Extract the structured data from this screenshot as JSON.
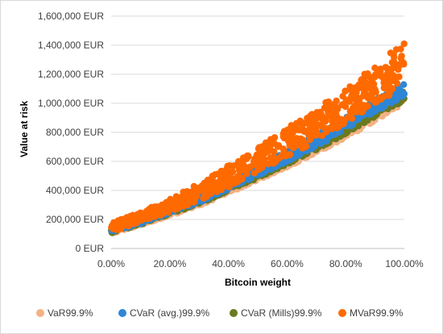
{
  "chart_data": {
    "type": "scatter",
    "title": "",
    "xlabel": "Bitcoin weight",
    "ylabel": "Value at risk",
    "xlim": [
      0,
      1
    ],
    "ylim": [
      0,
      1600000
    ],
    "x_ticks": [
      "0.00%",
      "20.00%",
      "40.00%",
      "60.00%",
      "80.00%",
      "100.00%"
    ],
    "y_ticks": [
      "0 EUR",
      "200,000 EUR",
      "400,000 EUR",
      "600,000 EUR",
      "800,000 EUR",
      "1,000,000 EUR",
      "1,200,000 EUR",
      "1,400,000 EUR",
      "1,600,000 EUR"
    ],
    "grid": "horizontal",
    "legend_position": "bottom",
    "series": [
      {
        "name": "VaR99.9%",
        "color": "#f4b183",
        "x": [
          0.0,
          0.1,
          0.2,
          0.3,
          0.4,
          0.5,
          0.6,
          0.7,
          0.8,
          0.9,
          1.0
        ],
        "y_low": [
          100000,
          160000,
          225000,
          295000,
          380000,
          470000,
          560000,
          660000,
          760000,
          880000,
          1000000
        ],
        "y_high": [
          140000,
          200000,
          265000,
          335000,
          425000,
          520000,
          620000,
          720000,
          830000,
          950000,
          1060000
        ]
      },
      {
        "name": "CVaR (avg.)99.9%",
        "color": "#2e86d6",
        "x": [
          0.0,
          0.1,
          0.2,
          0.3,
          0.4,
          0.5,
          0.6,
          0.7,
          0.8,
          0.9,
          1.0
        ],
        "y_low": [
          110000,
          170000,
          240000,
          315000,
          405000,
          500000,
          600000,
          700000,
          815000,
          940000,
          1050000
        ],
        "y_high": [
          155000,
          220000,
          290000,
          370000,
          460000,
          560000,
          670000,
          780000,
          900000,
          1020000,
          1150000
        ]
      },
      {
        "name": "CVaR (Mills)99.9%",
        "color": "#6b7a1f",
        "x": [
          0.0,
          0.1,
          0.2,
          0.3,
          0.4,
          0.5,
          0.6,
          0.7,
          0.8,
          0.9,
          1.0
        ],
        "y_low": [
          105000,
          165000,
          232000,
          305000,
          395000,
          485000,
          580000,
          680000,
          790000,
          905000,
          1020000
        ],
        "y_high": [
          150000,
          210000,
          280000,
          360000,
          445000,
          540000,
          640000,
          745000,
          860000,
          980000,
          1100000
        ]
      },
      {
        "name": "MVaR99.9%",
        "color": "#ff6a00",
        "x": [
          0.0,
          0.1,
          0.2,
          0.3,
          0.4,
          0.5,
          0.6,
          0.7,
          0.8,
          0.9,
          1.0
        ],
        "y_low": [
          115000,
          180000,
          250000,
          330000,
          420000,
          520000,
          630000,
          740000,
          860000,
          990000,
          1120000
        ],
        "y_high": [
          175000,
          250000,
          340000,
          450000,
          570000,
          690000,
          830000,
          960000,
          1100000,
          1260000,
          1430000
        ]
      }
    ]
  }
}
